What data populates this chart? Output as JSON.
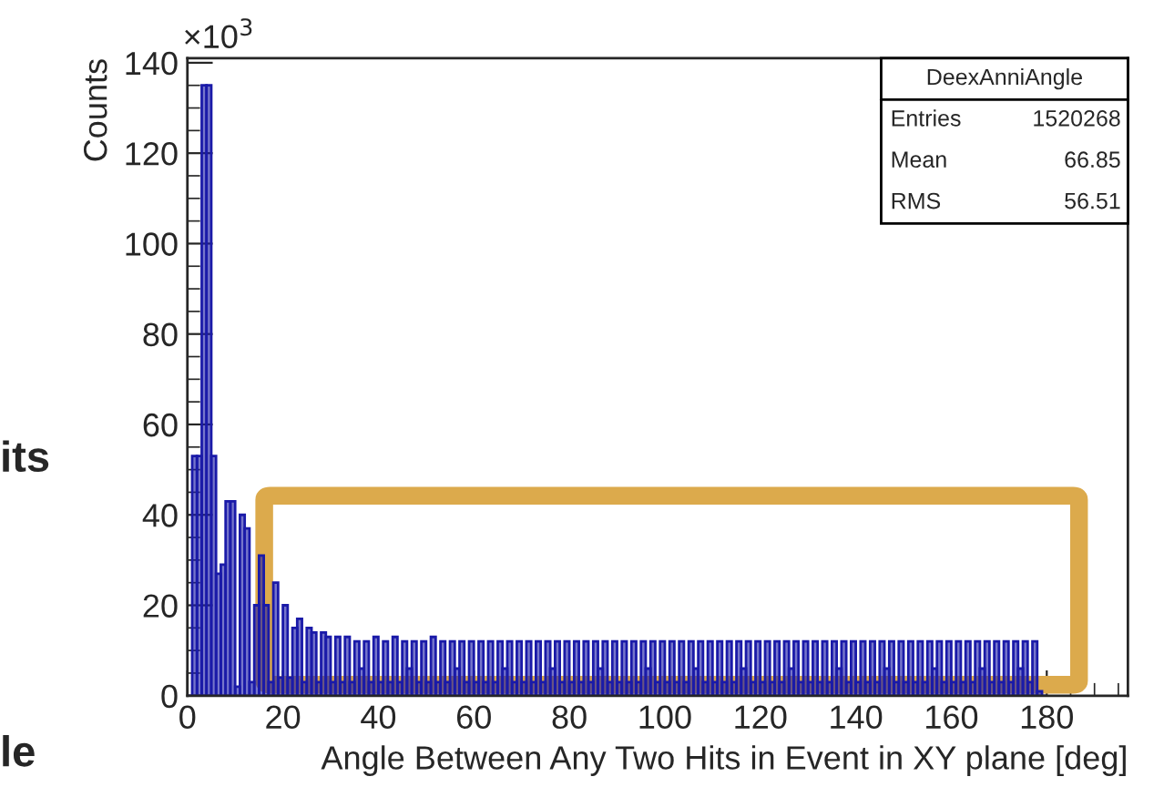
{
  "chart_data": {
    "type": "histogram",
    "xlabel": "Angle Between Any Two Hits in Event in XY plane [deg]",
    "ylabel": "Counts",
    "annotations": [
      "×10$^{3}$",
      "DeexAnniAngle",
      "Entries",
      "1520268",
      "Mean",
      "66.85",
      "RMS",
      "56.51",
      "its",
      "le"
    ],
    "bins": [
      0,
      1,
      2,
      3,
      4,
      5,
      6,
      7,
      8,
      9,
      10,
      11,
      12,
      13,
      14,
      15,
      16,
      17,
      18,
      19,
      20,
      21,
      22,
      23,
      24,
      25,
      26,
      27,
      28,
      29,
      30,
      31,
      32,
      33,
      34,
      35,
      36,
      37,
      38,
      39,
      40,
      41,
      42,
      43,
      44,
      45,
      46,
      47,
      48,
      49,
      50,
      51,
      52,
      53,
      54,
      55,
      56,
      57,
      58,
      59,
      60,
      61,
      62,
      63,
      64,
      65,
      66,
      67,
      68,
      69,
      70,
      71,
      72,
      73,
      74,
      75,
      76,
      77,
      78,
      79,
      80,
      81,
      82,
      83,
      84,
      85,
      86,
      87,
      88,
      89,
      90,
      91,
      92,
      93,
      94,
      95,
      96,
      97,
      98,
      99,
      100,
      101,
      102,
      103,
      104,
      105,
      106,
      107,
      108,
      109,
      110,
      111,
      112,
      113,
      114,
      115,
      116,
      117,
      118,
      119,
      120,
      121,
      122,
      123,
      124,
      125,
      126,
      127,
      128,
      129,
      130,
      131,
      132,
      133,
      134,
      135,
      136,
      137,
      138,
      139,
      140,
      141,
      142,
      143,
      144,
      145,
      146,
      147,
      148,
      149,
      150,
      151,
      152,
      153,
      154,
      155,
      156,
      157,
      158,
      159,
      160,
      161,
      162,
      163,
      164,
      165,
      166,
      167,
      168,
      169,
      170,
      171,
      172,
      173,
      174,
      175,
      176,
      177,
      178,
      179,
      180
    ],
    "values": [
      0,
      53,
      53,
      135,
      135,
      53,
      27,
      29,
      43,
      43,
      2,
      40,
      37,
      3,
      20,
      31,
      20,
      3,
      25,
      4,
      20,
      4,
      15,
      17,
      3,
      15,
      14,
      3,
      14,
      13,
      3,
      13,
      3,
      13,
      3,
      12,
      6,
      12,
      3,
      13,
      3,
      12,
      3,
      13,
      3,
      12,
      6,
      12,
      3,
      12,
      3,
      13,
      3,
      12,
      3,
      12,
      6,
      12,
      3,
      12,
      3,
      12,
      3,
      12,
      3,
      12,
      6,
      12,
      3,
      12,
      3,
      12,
      3,
      12,
      3,
      12,
      6,
      12,
      3,
      12,
      3,
      12,
      3,
      12,
      3,
      12,
      6,
      12,
      3,
      12,
      3,
      12,
      3,
      12,
      3,
      12,
      6,
      12,
      3,
      12,
      3,
      12,
      3,
      12,
      3,
      12,
      6,
      12,
      3,
      12,
      3,
      12,
      3,
      12,
      3,
      12,
      6,
      12,
      3,
      12,
      3,
      12,
      3,
      12,
      3,
      12,
      6,
      12,
      3,
      12,
      3,
      12,
      3,
      12,
      3,
      12,
      6,
      12,
      3,
      12,
      3,
      12,
      3,
      12,
      3,
      12,
      6,
      12,
      3,
      12,
      3,
      12,
      3,
      12,
      3,
      12,
      6,
      12,
      3,
      12,
      3,
      12,
      3,
      12,
      3,
      12,
      6,
      12,
      3,
      12,
      3,
      12,
      3,
      12,
      6,
      12,
      3,
      12,
      1,
      0
    ],
    "color": "#1a1aa8",
    "xlim": [
      0,
      197
    ],
    "xticks": [
      0,
      20,
      40,
      60,
      80,
      100,
      120,
      140,
      160,
      180
    ],
    "ylim": [
      0,
      141
    ],
    "yticks": [
      0,
      20,
      40,
      60,
      80,
      100,
      120,
      140
    ]
  }
}
